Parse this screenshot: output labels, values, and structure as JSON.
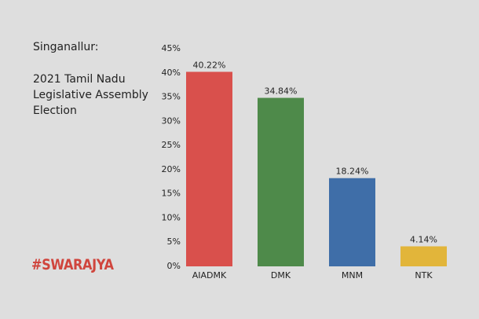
{
  "chart_data": {
    "type": "bar",
    "title": "Singanallur:",
    "subtitle": "2021 Tamil Nadu Legislative Assembly Election",
    "brand": "#SWARAJYA",
    "categories": [
      "AIADMK",
      "DMK",
      "MNM",
      "NTK"
    ],
    "values": [
      40.22,
      34.84,
      18.24,
      4.14
    ],
    "value_labels": [
      "40.22%",
      "34.84%",
      "18.24%",
      "4.14%"
    ],
    "colors": [
      "#d9504c",
      "#4e8a4a",
      "#3f6ea8",
      "#e2b53a"
    ],
    "ylim": [
      0,
      45
    ],
    "yticks": [
      {
        "value": 0,
        "label": "0%"
      },
      {
        "value": 5,
        "label": "5%"
      },
      {
        "value": 10,
        "label": "10%"
      },
      {
        "value": 15,
        "label": "15%"
      },
      {
        "value": 20,
        "label": "20%"
      },
      {
        "value": 25,
        "label": "25%"
      },
      {
        "value": 30,
        "label": "30%"
      },
      {
        "value": 35,
        "label": "35%"
      },
      {
        "value": 40,
        "label": "40%"
      },
      {
        "value": 45,
        "label": "45%"
      }
    ],
    "grid": false
  }
}
